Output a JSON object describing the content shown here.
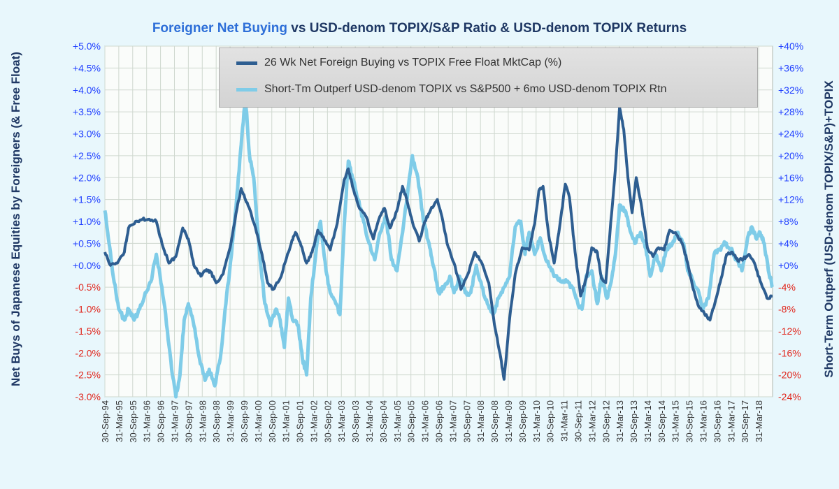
{
  "title": {
    "accent": "Foreigner Net Buying",
    "rest": " vs USD-denom TOPIX/S&P Ratio & USD-denom TOPIX Returns"
  },
  "colors": {
    "background": "#e8f7fc",
    "plot_background": "#fafcfa",
    "grid": "#cfd8cf",
    "positive_tick": "#1f3fff",
    "negative_tick": "#e0261c",
    "series1": "#2e5e91",
    "series2": "#7fcce8"
  },
  "chart_data": {
    "type": "line",
    "title": "Foreigner Net Buying vs USD-denom TOPIX/S&P Ratio & USD-denom TOPIX Returns",
    "ylabel": "Net Buys of Japanese Equities by Foreigners (& Free Float)",
    "y2label": "Short-Term Outperf (USD-denom TOPIX/S&P)+TOPIX",
    "ylim": [
      -3.0,
      5.0
    ],
    "y2lim": [
      -24,
      40
    ],
    "grid": true,
    "legend_position": "top-right",
    "left_ticks": [
      "+5.0%",
      "+4.5%",
      "+4.0%",
      "+3.5%",
      "+3.0%",
      "+2.5%",
      "+2.0%",
      "+1.5%",
      "+1.0%",
      "+0.5%",
      "+0.0%",
      "-0.5%",
      "-1.0%",
      "-1.5%",
      "-2.0%",
      "-2.5%",
      "-3.0%"
    ],
    "right_ticks": [
      "+40%",
      "+36%",
      "+32%",
      "+28%",
      "+24%",
      "+20%",
      "+16%",
      "+12%",
      "+8%",
      "+4%",
      "+0%",
      "-4%",
      "-8%",
      "-12%",
      "-16%",
      "-20%",
      "-24%"
    ],
    "x_ticks": [
      "30-Sep-94",
      "31-Mar-95",
      "30-Sep-95",
      "31-Mar-96",
      "30-Sep-96",
      "31-Mar-97",
      "30-Sep-97",
      "31-Mar-98",
      "30-Sep-98",
      "31-Mar-99",
      "30-Sep-99",
      "31-Mar-00",
      "30-Sep-00",
      "31-Mar-01",
      "30-Sep-01",
      "31-Mar-02",
      "30-Sep-02",
      "31-Mar-03",
      "30-Sep-03",
      "31-Mar-04",
      "30-Sep-04",
      "31-Mar-05",
      "30-Sep-05",
      "31-Mar-06",
      "30-Sep-06",
      "31-Mar-07",
      "30-Sep-07",
      "31-Mar-08",
      "30-Sep-08",
      "31-Mar-09",
      "30-Sep-09",
      "31-Mar-10",
      "30-Sep-10",
      "31-Mar-11",
      "30-Sep-11",
      "31-Mar-12",
      "30-Sep-12",
      "31-Mar-13",
      "30-Sep-13",
      "31-Mar-14",
      "30-Sep-14",
      "31-Mar-15",
      "30-Sep-15",
      "31-Mar-16",
      "30-Sep-16",
      "31-Mar-17",
      "30-Sep-17",
      "31-Mar-18"
    ],
    "x_range": [
      1994.75,
      2018.75
    ],
    "series": [
      {
        "name": "26 Wk Net Foreign Buying vs TOPIX Free Float MktCap (%)",
        "axis": "left",
        "points": [
          [
            1994.75,
            0.3
          ],
          [
            1994.95,
            0.0
          ],
          [
            1995.2,
            0.05
          ],
          [
            1995.45,
            0.3
          ],
          [
            1995.6,
            0.85
          ],
          [
            1995.85,
            1.0
          ],
          [
            1996.1,
            1.05
          ],
          [
            1996.35,
            1.05
          ],
          [
            1996.6,
            1.0
          ],
          [
            1996.8,
            0.5
          ],
          [
            1997.05,
            0.05
          ],
          [
            1997.3,
            0.2
          ],
          [
            1997.55,
            0.85
          ],
          [
            1997.75,
            0.6
          ],
          [
            1997.95,
            0.0
          ],
          [
            1998.2,
            -0.25
          ],
          [
            1998.4,
            -0.1
          ],
          [
            1998.55,
            -0.15
          ],
          [
            1998.75,
            -0.4
          ],
          [
            1999.0,
            -0.2
          ],
          [
            1999.25,
            0.4
          ],
          [
            1999.5,
            1.3
          ],
          [
            1999.65,
            1.75
          ],
          [
            1999.8,
            1.5
          ],
          [
            2000.0,
            1.2
          ],
          [
            2000.2,
            0.75
          ],
          [
            2000.4,
            0.25
          ],
          [
            2000.6,
            -0.4
          ],
          [
            2000.8,
            -0.55
          ],
          [
            2001.05,
            -0.3
          ],
          [
            2001.25,
            0.1
          ],
          [
            2001.45,
            0.5
          ],
          [
            2001.6,
            0.75
          ],
          [
            2001.8,
            0.45
          ],
          [
            2002.0,
            0.05
          ],
          [
            2002.2,
            0.3
          ],
          [
            2002.4,
            0.8
          ],
          [
            2002.6,
            0.65
          ],
          [
            2002.85,
            0.35
          ],
          [
            2003.1,
            0.95
          ],
          [
            2003.35,
            1.95
          ],
          [
            2003.5,
            2.2
          ],
          [
            2003.65,
            1.8
          ],
          [
            2003.9,
            1.3
          ],
          [
            2004.15,
            1.1
          ],
          [
            2004.4,
            0.6
          ],
          [
            2004.6,
            1.05
          ],
          [
            2004.8,
            1.3
          ],
          [
            2005.0,
            0.85
          ],
          [
            2005.25,
            1.25
          ],
          [
            2005.45,
            1.8
          ],
          [
            2005.6,
            1.5
          ],
          [
            2005.8,
            1.0
          ],
          [
            2006.05,
            0.55
          ],
          [
            2006.25,
            1.0
          ],
          [
            2006.45,
            1.25
          ],
          [
            2006.7,
            1.5
          ],
          [
            2006.9,
            1.0
          ],
          [
            2007.05,
            0.5
          ],
          [
            2007.3,
            0.05
          ],
          [
            2007.55,
            -0.55
          ],
          [
            2007.8,
            -0.2
          ],
          [
            2008.05,
            0.3
          ],
          [
            2008.3,
            0.05
          ],
          [
            2008.55,
            -0.4
          ],
          [
            2008.75,
            -1.35
          ],
          [
            2008.95,
            -2.0
          ],
          [
            2009.1,
            -2.6
          ],
          [
            2009.3,
            -1.2
          ],
          [
            2009.5,
            -0.2
          ],
          [
            2009.75,
            0.4
          ],
          [
            2010.0,
            0.35
          ],
          [
            2010.2,
            0.95
          ],
          [
            2010.35,
            1.7
          ],
          [
            2010.5,
            1.8
          ],
          [
            2010.7,
            0.7
          ],
          [
            2010.9,
            0.05
          ],
          [
            2011.1,
            0.9
          ],
          [
            2011.3,
            1.85
          ],
          [
            2011.45,
            1.55
          ],
          [
            2011.65,
            0.3
          ],
          [
            2011.85,
            -0.7
          ],
          [
            2012.05,
            -0.3
          ],
          [
            2012.25,
            0.4
          ],
          [
            2012.45,
            0.3
          ],
          [
            2012.6,
            -0.3
          ],
          [
            2012.75,
            -0.4
          ],
          [
            2012.9,
            0.7
          ],
          [
            2013.1,
            2.2
          ],
          [
            2013.25,
            3.6
          ],
          [
            2013.4,
            3.1
          ],
          [
            2013.55,
            2.0
          ],
          [
            2013.7,
            1.2
          ],
          [
            2013.85,
            2.0
          ],
          [
            2014.05,
            1.3
          ],
          [
            2014.25,
            0.4
          ],
          [
            2014.45,
            0.2
          ],
          [
            2014.65,
            0.4
          ],
          [
            2014.85,
            0.35
          ],
          [
            2015.05,
            0.8
          ],
          [
            2015.3,
            0.7
          ],
          [
            2015.5,
            0.5
          ],
          [
            2015.7,
            0.05
          ],
          [
            2015.9,
            -0.55
          ],
          [
            2016.1,
            -0.95
          ],
          [
            2016.3,
            -1.1
          ],
          [
            2016.5,
            -1.25
          ],
          [
            2016.7,
            -0.8
          ],
          [
            2016.9,
            -0.3
          ],
          [
            2017.1,
            0.25
          ],
          [
            2017.3,
            0.3
          ],
          [
            2017.5,
            0.1
          ],
          [
            2017.7,
            0.15
          ],
          [
            2017.9,
            0.25
          ],
          [
            2018.1,
            0.05
          ],
          [
            2018.3,
            -0.35
          ],
          [
            2018.55,
            -0.75
          ],
          [
            2018.75,
            -0.7
          ]
        ]
      },
      {
        "name": "Short-Tm Outperf USD-denom TOPIX vs S&P500 + 6mo USD-denom TOPIX Rtn",
        "axis": "right",
        "points": [
          [
            1994.75,
            10
          ],
          [
            1994.9,
            4
          ],
          [
            1995.05,
            -2
          ],
          [
            1995.25,
            -8
          ],
          [
            1995.45,
            -10
          ],
          [
            1995.6,
            -8
          ],
          [
            1995.8,
            -10
          ],
          [
            1996.0,
            -8
          ],
          [
            1996.2,
            -5
          ],
          [
            1996.4,
            -3
          ],
          [
            1996.6,
            2
          ],
          [
            1996.8,
            -4
          ],
          [
            1997.0,
            -12
          ],
          [
            1997.15,
            -19
          ],
          [
            1997.3,
            -24
          ],
          [
            1997.45,
            -20
          ],
          [
            1997.6,
            -10
          ],
          [
            1997.75,
            -7
          ],
          [
            1997.95,
            -11
          ],
          [
            1998.15,
            -17
          ],
          [
            1998.35,
            -21
          ],
          [
            1998.5,
            -19
          ],
          [
            1998.7,
            -22
          ],
          [
            1998.9,
            -17
          ],
          [
            1999.1,
            -7
          ],
          [
            1999.3,
            2
          ],
          [
            1999.5,
            13
          ],
          [
            1999.65,
            22
          ],
          [
            1999.8,
            31
          ],
          [
            1999.95,
            20
          ],
          [
            2000.1,
            16
          ],
          [
            2000.3,
            3
          ],
          [
            2000.5,
            -7
          ],
          [
            2000.7,
            -11
          ],
          [
            2000.9,
            -8
          ],
          [
            2001.05,
            -10
          ],
          [
            2001.2,
            -15
          ],
          [
            2001.35,
            -6
          ],
          [
            2001.5,
            -10
          ],
          [
            2001.7,
            -11
          ],
          [
            2001.85,
            -17
          ],
          [
            2002.0,
            -20
          ],
          [
            2002.15,
            -6
          ],
          [
            2002.35,
            3
          ],
          [
            2002.5,
            8
          ],
          [
            2002.7,
            -1
          ],
          [
            2002.85,
            -5
          ],
          [
            2003.05,
            -7
          ],
          [
            2003.2,
            -9
          ],
          [
            2003.35,
            7
          ],
          [
            2003.5,
            19
          ],
          [
            2003.65,
            16
          ],
          [
            2003.85,
            12
          ],
          [
            2004.05,
            8
          ],
          [
            2004.25,
            4
          ],
          [
            2004.45,
            1
          ],
          [
            2004.65,
            6
          ],
          [
            2004.85,
            9
          ],
          [
            2005.05,
            1
          ],
          [
            2005.25,
            -1
          ],
          [
            2005.45,
            6
          ],
          [
            2005.65,
            14
          ],
          [
            2005.8,
            20
          ],
          [
            2006.0,
            16
          ],
          [
            2006.2,
            8
          ],
          [
            2006.4,
            4
          ],
          [
            2006.55,
            0
          ],
          [
            2006.75,
            -5
          ],
          [
            2006.95,
            -4
          ],
          [
            2007.15,
            -2
          ],
          [
            2007.3,
            -5
          ],
          [
            2007.5,
            -2
          ],
          [
            2007.7,
            -5
          ],
          [
            2007.9,
            -5
          ],
          [
            2008.1,
            0
          ],
          [
            2008.3,
            -4
          ],
          [
            2008.5,
            -7
          ],
          [
            2008.7,
            -9
          ],
          [
            2008.9,
            -6
          ],
          [
            2009.1,
            -4
          ],
          [
            2009.3,
            -2
          ],
          [
            2009.5,
            7
          ],
          [
            2009.7,
            8
          ],
          [
            2009.85,
            2
          ],
          [
            2010.0,
            6
          ],
          [
            2010.2,
            2
          ],
          [
            2010.4,
            5
          ],
          [
            2010.6,
            1
          ],
          [
            2010.8,
            -1
          ],
          [
            2010.95,
            -2
          ],
          [
            2011.15,
            -3
          ],
          [
            2011.35,
            -3
          ],
          [
            2011.55,
            -4
          ],
          [
            2011.75,
            -7
          ],
          [
            2011.9,
            -8
          ],
          [
            2012.05,
            -2
          ],
          [
            2012.25,
            -1
          ],
          [
            2012.45,
            -7
          ],
          [
            2012.6,
            -2
          ],
          [
            2012.8,
            -6
          ],
          [
            2012.95,
            -3
          ],
          [
            2013.1,
            2
          ],
          [
            2013.25,
            11
          ],
          [
            2013.45,
            10
          ],
          [
            2013.6,
            7
          ],
          [
            2013.8,
            4
          ],
          [
            2014.0,
            6
          ],
          [
            2014.2,
            3
          ],
          [
            2014.35,
            -2
          ],
          [
            2014.55,
            2
          ],
          [
            2014.75,
            -1
          ],
          [
            2014.95,
            3
          ],
          [
            2015.15,
            4
          ],
          [
            2015.35,
            6
          ],
          [
            2015.55,
            4
          ],
          [
            2015.7,
            -1
          ],
          [
            2015.9,
            -3
          ],
          [
            2016.1,
            -5
          ],
          [
            2016.25,
            -8
          ],
          [
            2016.45,
            -6
          ],
          [
            2016.65,
            2
          ],
          [
            2016.85,
            3
          ],
          [
            2017.05,
            4
          ],
          [
            2017.25,
            3
          ],
          [
            2017.45,
            1
          ],
          [
            2017.65,
            -1
          ],
          [
            2017.85,
            5
          ],
          [
            2018.0,
            7
          ],
          [
            2018.15,
            5
          ],
          [
            2018.3,
            6
          ],
          [
            2018.45,
            4
          ],
          [
            2018.6,
            -1
          ],
          [
            2018.75,
            -4
          ]
        ]
      }
    ]
  }
}
